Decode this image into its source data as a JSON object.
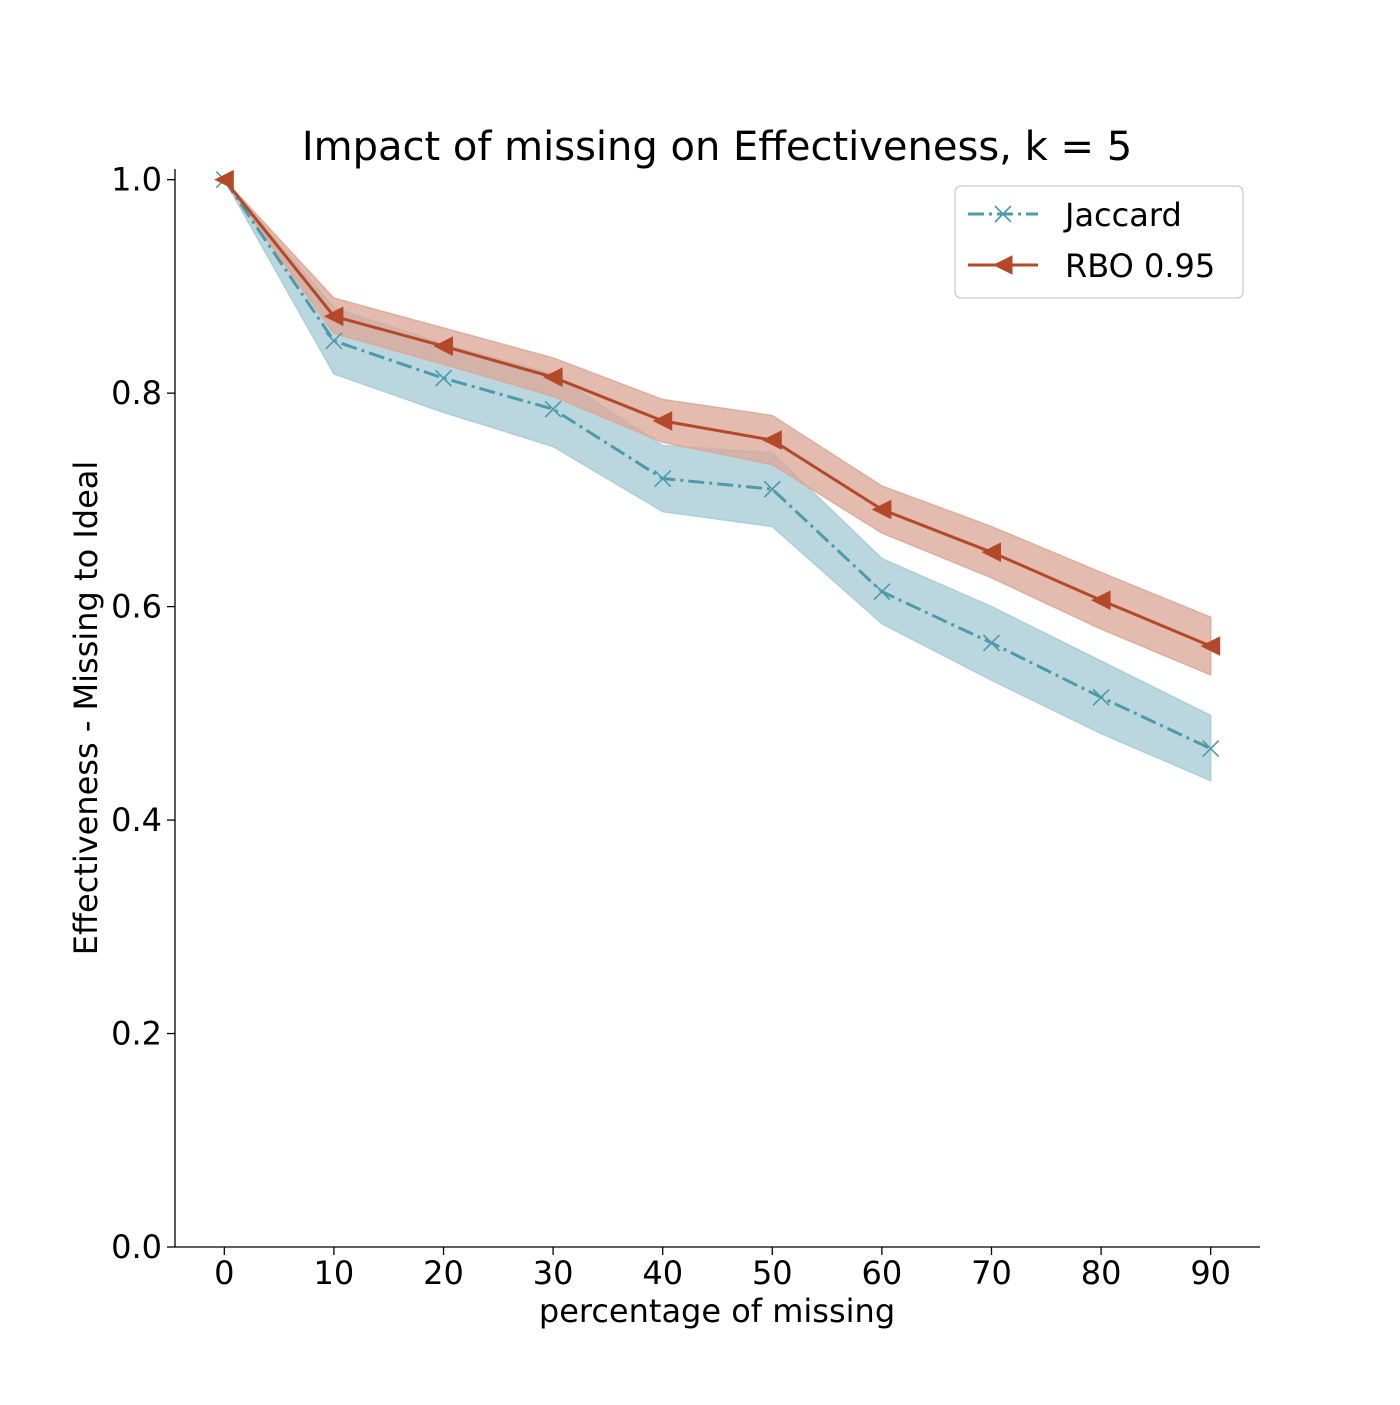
{
  "chart_data": {
    "type": "line",
    "title": "Impact of missing on Effectiveness, k = 5",
    "xlabel": "percentage of missing",
    "ylabel": "Effectiveness - Missing to Ideal",
    "x": [
      0,
      10,
      20,
      30,
      40,
      50,
      60,
      70,
      80,
      90
    ],
    "x_ticks": [
      "0",
      "10",
      "20",
      "30",
      "40",
      "50",
      "60",
      "70",
      "80",
      "90"
    ],
    "y_ticks": [
      "0.0",
      "0.2",
      "0.4",
      "0.6",
      "0.8",
      "1.0"
    ],
    "y_tick_values": [
      0.0,
      0.2,
      0.4,
      0.6,
      0.8,
      1.0
    ],
    "xlim": [
      -4.5,
      94.5
    ],
    "ylim": [
      0.0,
      1.01
    ],
    "grid": false,
    "legend_position": "top-right",
    "series": [
      {
        "name": "Jaccard",
        "color": "#4d9aaa",
        "band_color": "#a7ccd6",
        "line_style": "dash-dot",
        "marker": "x",
        "values": [
          1.0,
          0.849,
          0.814,
          0.785,
          0.72,
          0.71,
          0.614,
          0.566,
          0.515,
          0.467
        ],
        "lower": [
          1.0,
          0.818,
          0.782,
          0.75,
          0.689,
          0.675,
          0.584,
          0.531,
          0.481,
          0.437
        ],
        "upper": [
          1.0,
          0.88,
          0.846,
          0.818,
          0.751,
          0.744,
          0.645,
          0.6,
          0.549,
          0.498
        ]
      },
      {
        "name": "RBO 0.95",
        "color": "#b4492a",
        "band_color": "#dba898",
        "line_style": "solid",
        "marker": "triangle-left",
        "values": [
          1.0,
          0.872,
          0.844,
          0.815,
          0.774,
          0.756,
          0.691,
          0.651,
          0.606,
          0.563
        ],
        "lower": [
          1.0,
          0.856,
          0.827,
          0.797,
          0.754,
          0.733,
          0.669,
          0.627,
          0.579,
          0.536
        ],
        "upper": [
          1.0,
          0.889,
          0.861,
          0.833,
          0.794,
          0.779,
          0.713,
          0.675,
          0.632,
          0.59
        ]
      }
    ]
  }
}
